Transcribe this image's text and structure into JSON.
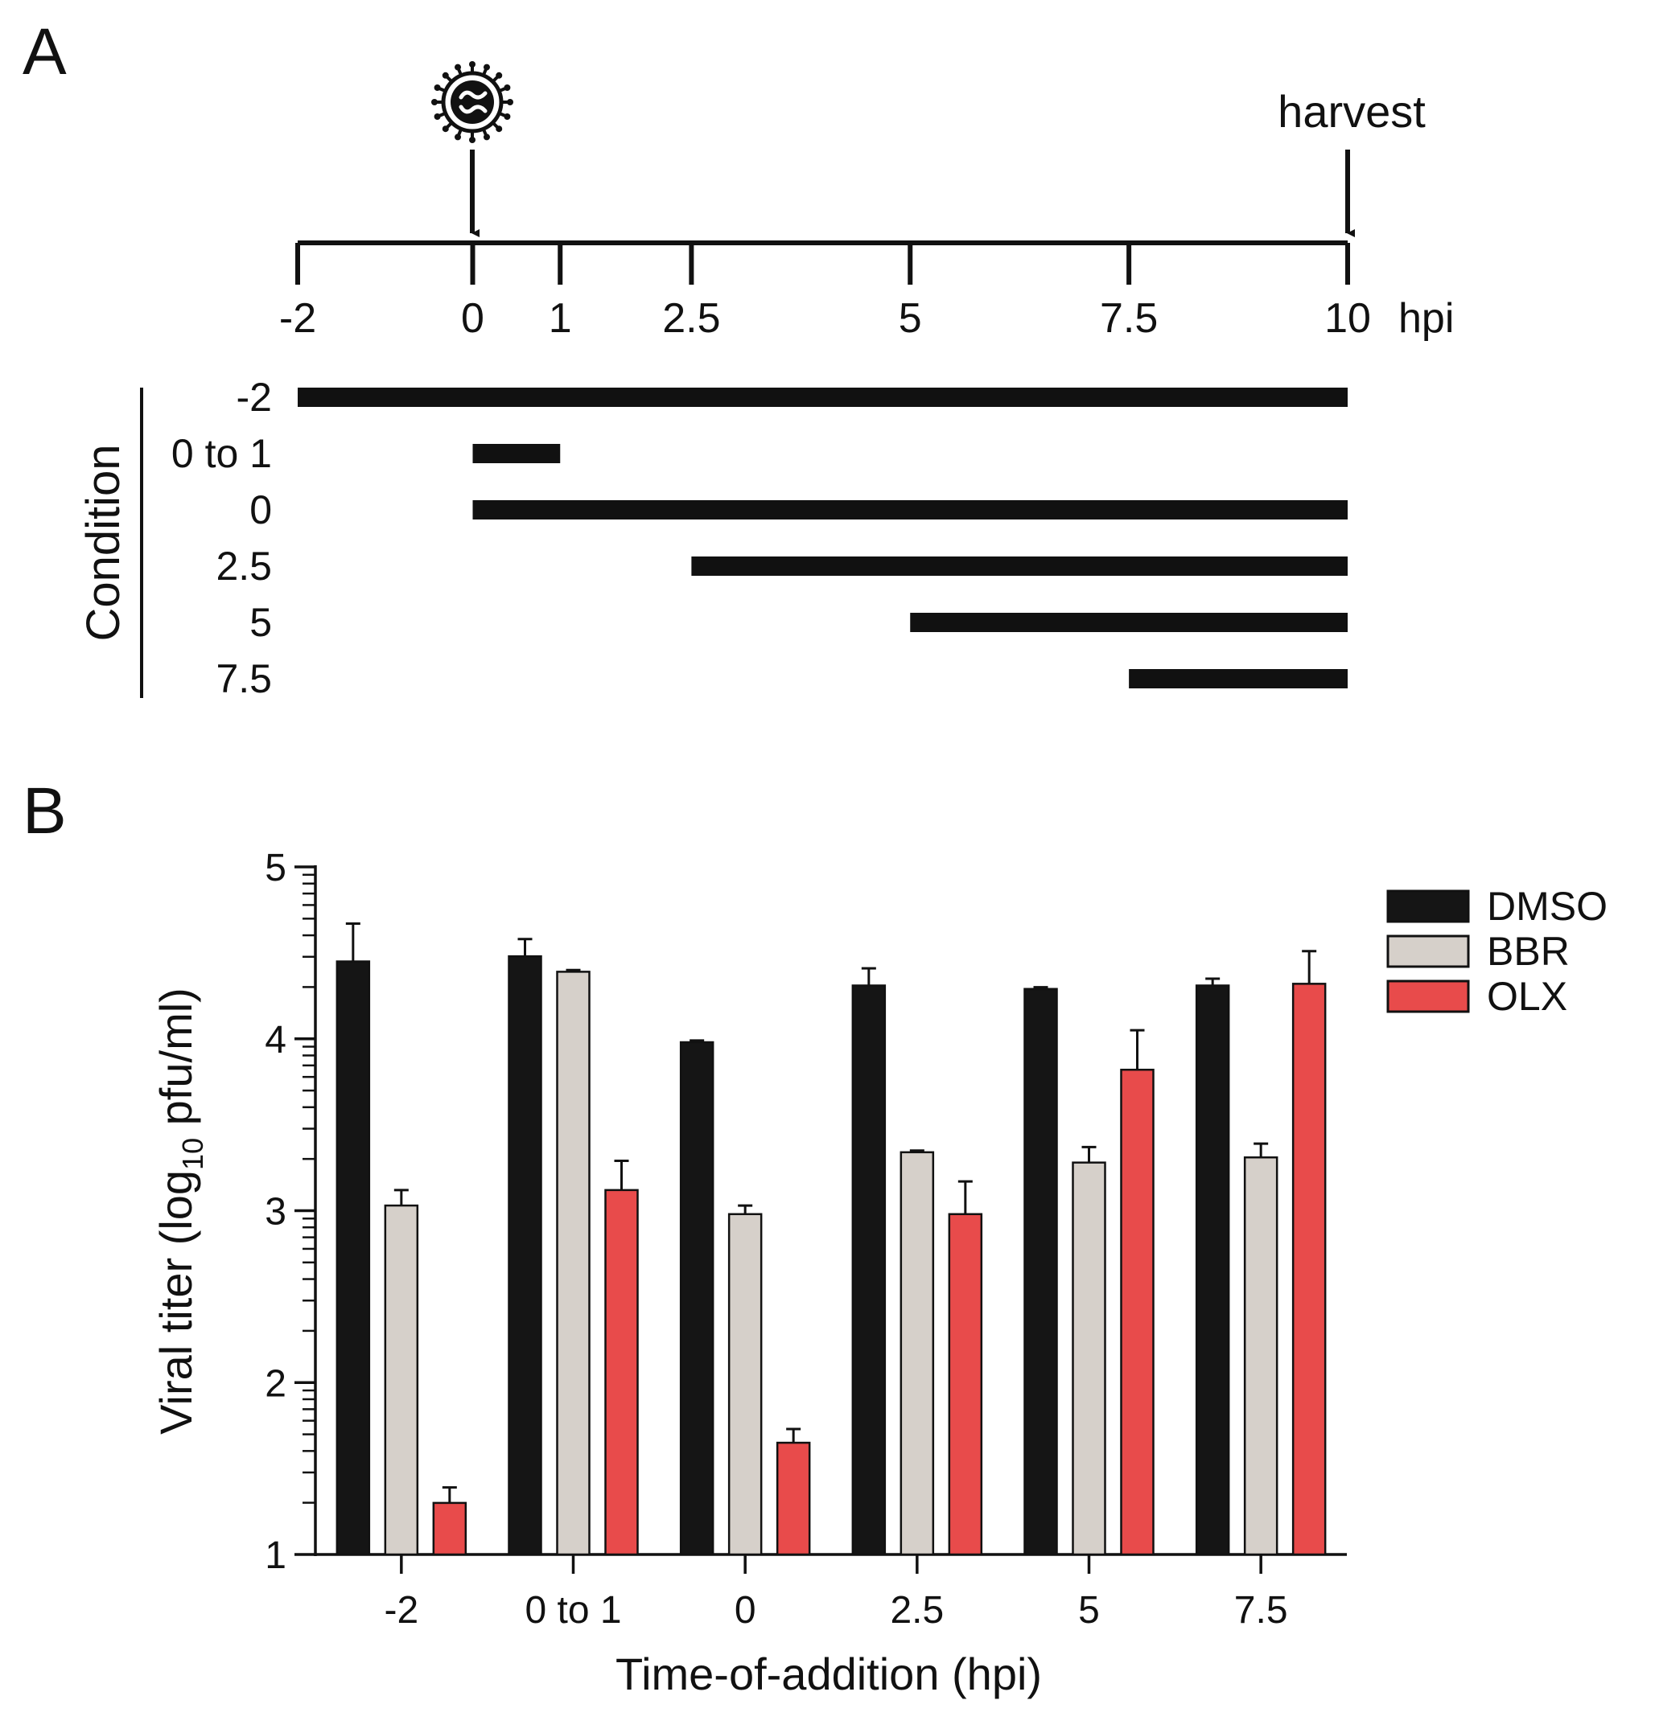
{
  "panel_a": {
    "label": "A",
    "harvest_label": "harvest",
    "unit_label": "hpi",
    "timeline_ticks": [
      "-2",
      "0",
      "1",
      "2.5",
      "5",
      "7.5",
      "10"
    ],
    "timeline_tick_values": [
      -2,
      0,
      1,
      2.5,
      5,
      7.5,
      10
    ],
    "infection_time": 0,
    "harvest_time": 10,
    "condition_axis_label": "Condition",
    "conditions": [
      {
        "label": "-2",
        "start": -2,
        "end": 10
      },
      {
        "label": "0 to 1",
        "start": 0,
        "end": 1
      },
      {
        "label": "0",
        "start": 0,
        "end": 10
      },
      {
        "label": "2.5",
        "start": 2.5,
        "end": 10
      },
      {
        "label": "5",
        "start": 5,
        "end": 10
      },
      {
        "label": "7.5",
        "start": 7.5,
        "end": 10
      }
    ],
    "virus_icon": "virus-icon"
  },
  "panel_b": {
    "label": "B"
  },
  "chart_data": {
    "type": "bar",
    "title": "",
    "xlabel": "Time-of-addition (hpi)",
    "ylabel_prefix": "Viral titer (log",
    "ylabel_sub": "10",
    "ylabel_suffix": " pfu/ml)",
    "ylim": [
      1,
      5
    ],
    "yticks": [
      1,
      2,
      3,
      4,
      5
    ],
    "ytick_labels": [
      "1",
      "2",
      "3",
      "4",
      "5"
    ],
    "categories": [
      "-2",
      "0 to 1",
      "0",
      "2.5",
      "5",
      "7.5"
    ],
    "series": [
      {
        "name": "DMSO",
        "color": "#151515",
        "values": [
          4.45,
          4.48,
          3.98,
          4.31,
          4.29,
          4.31
        ],
        "errors": [
          0.22,
          0.1,
          0.01,
          0.1,
          0.01,
          0.04
        ]
      },
      {
        "name": "BBR",
        "color": "#d6d0ca",
        "values": [
          3.03,
          4.39,
          2.98,
          3.34,
          3.28,
          3.31
        ],
        "errors": [
          0.09,
          0.01,
          0.05,
          0.01,
          0.09,
          0.08
        ]
      },
      {
        "name": "OLX",
        "color": "#e84b4b",
        "values": [
          1.3,
          3.12,
          1.65,
          2.98,
          3.82,
          4.32
        ],
        "errors": [
          0.09,
          0.17,
          0.08,
          0.19,
          0.23,
          0.19
        ]
      }
    ],
    "legend_position": "top-right"
  }
}
